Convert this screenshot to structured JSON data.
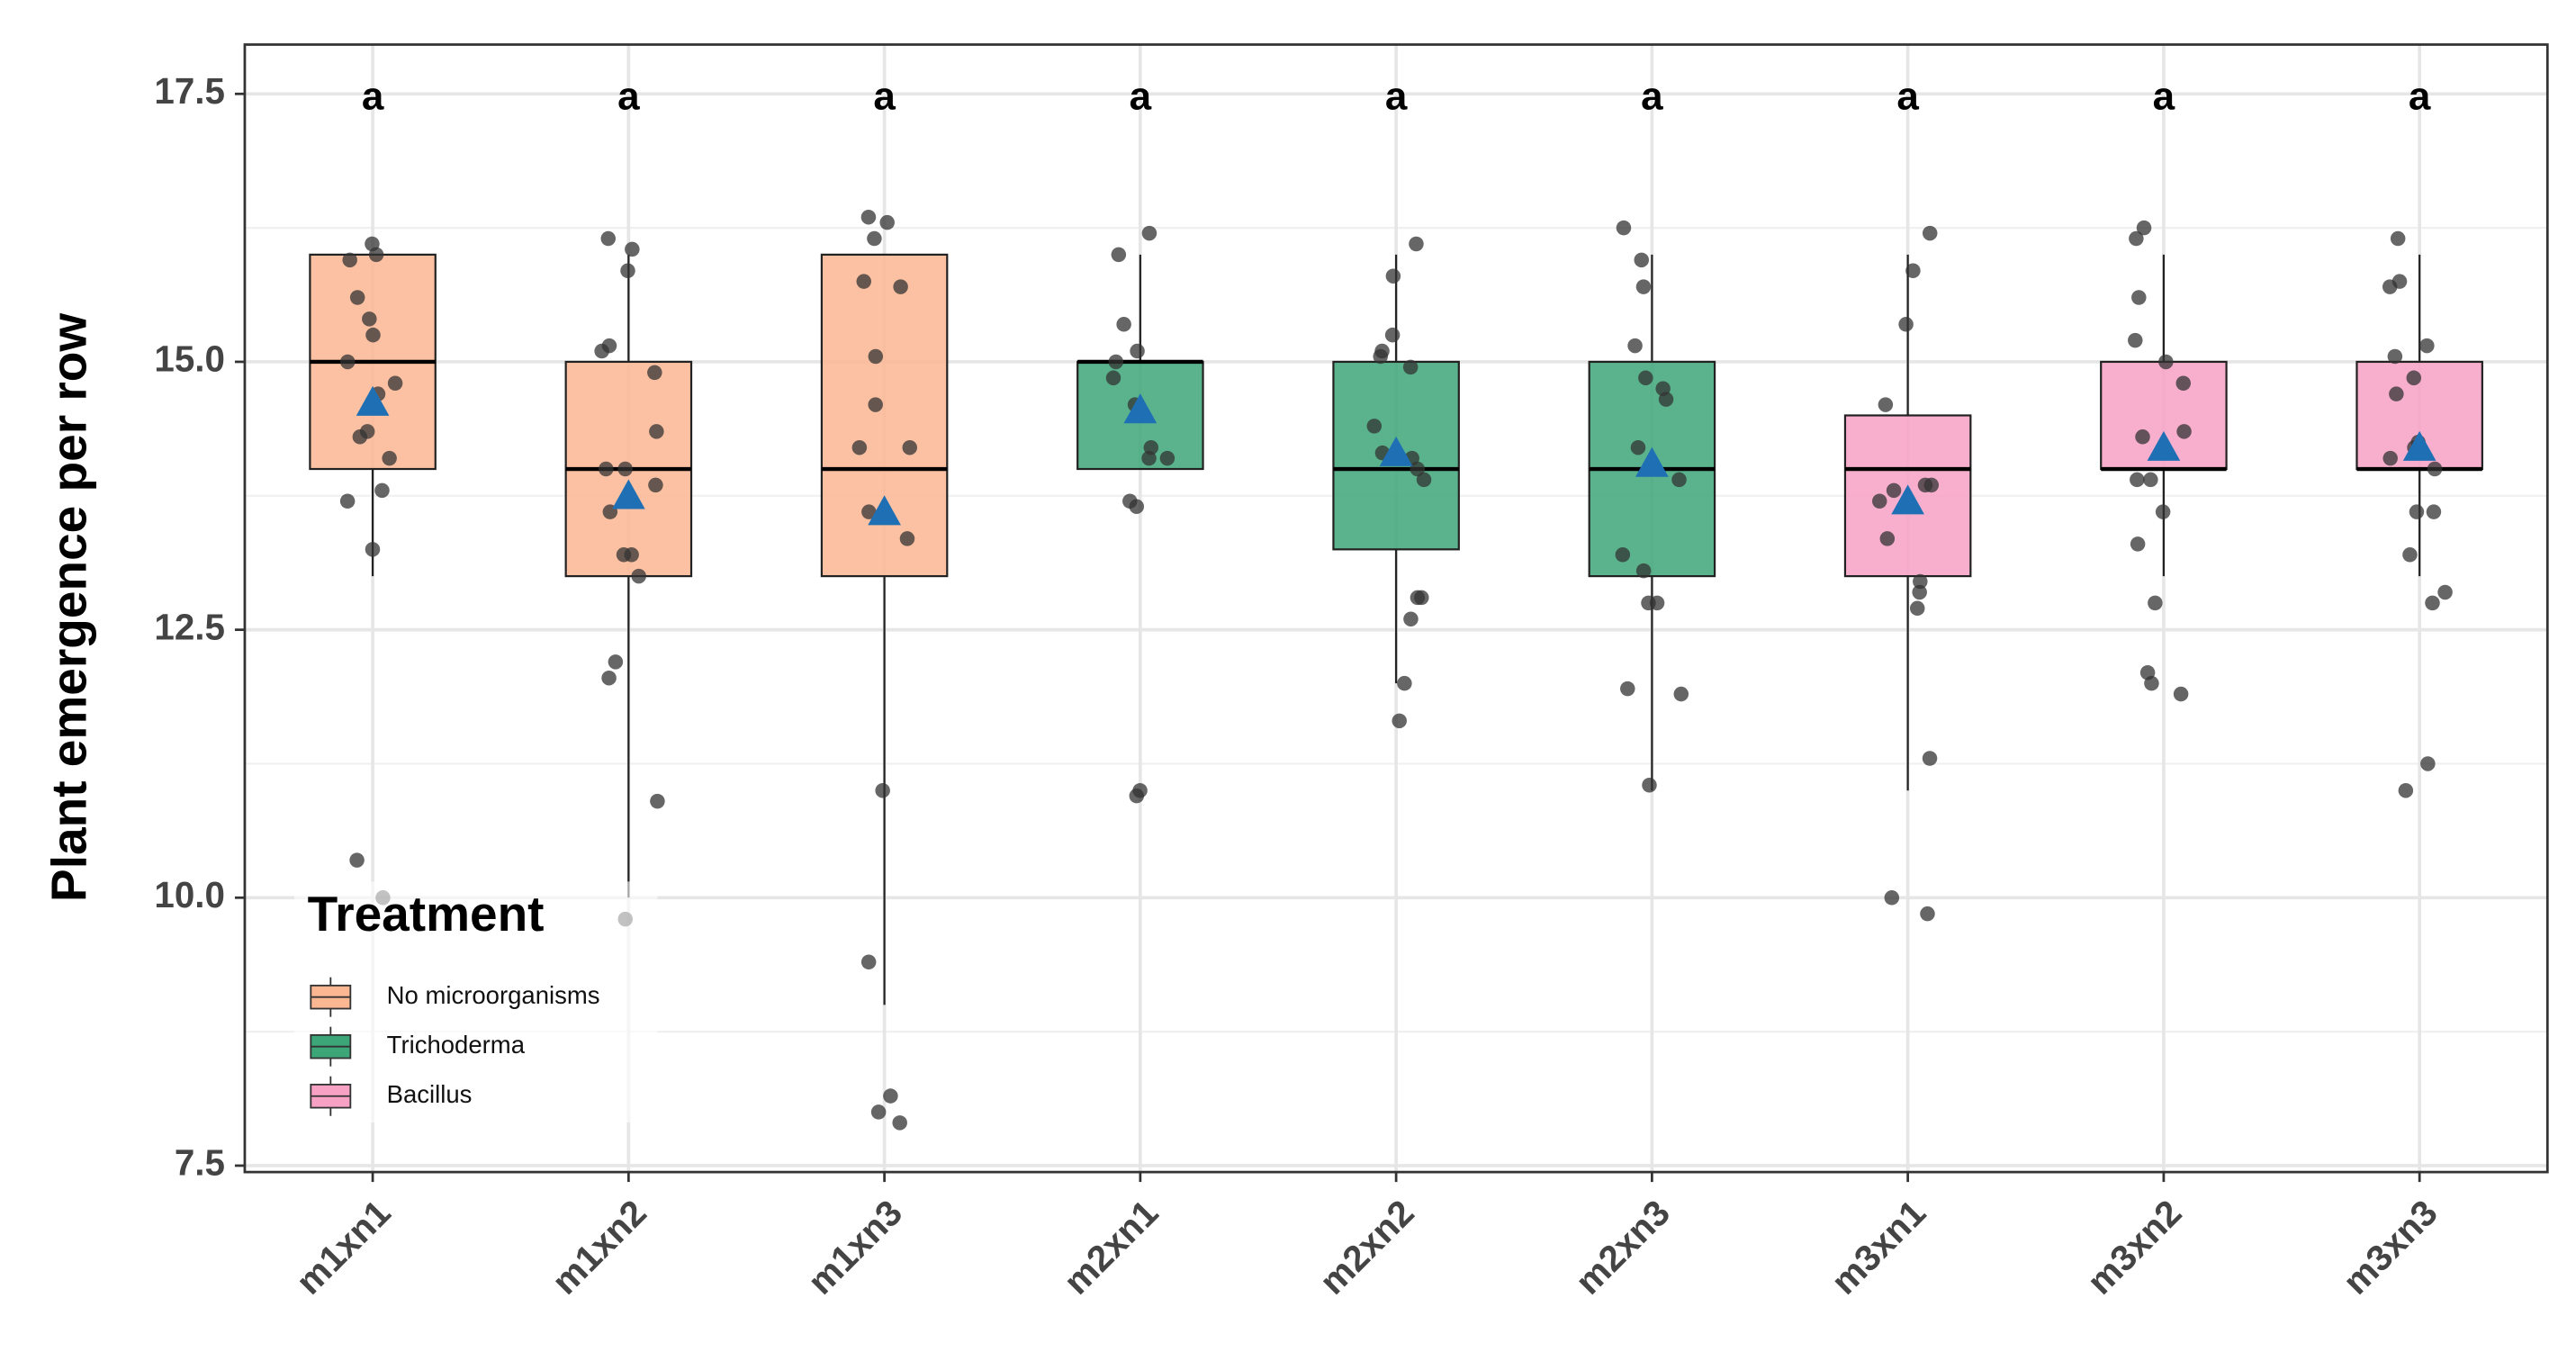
{
  "chart_data": {
    "type": "box",
    "y_label": "Plant emergence per row",
    "legend_title": "Treatment",
    "legend_position": "bottom-left",
    "grid": true,
    "ylim": [
      7.44,
      17.96
    ],
    "yticks": [
      7.5,
      {
        "value": 10,
        "label": "10.0"
      },
      12.5,
      {
        "value": 15,
        "label": "15.0"
      },
      17.5
    ],
    "categories": [
      "m1xn1",
      "m1xn2",
      "m1xn3",
      "m2xn1",
      "m2xn2",
      "m2xn3",
      "m3xn1",
      "m3xn2",
      "m3xn3"
    ],
    "annotations": [
      "a",
      "a",
      "a",
      "a",
      "a",
      "a",
      "a",
      "a",
      "a"
    ],
    "mean_color": "#1f6fb4",
    "point_color": "#333333",
    "series": [
      {
        "name": "No microorganisms",
        "color": "#fbb692",
        "boxes": [
          {
            "low": 13,
            "q1": 14,
            "median": 15,
            "q3": 16,
            "high": 16,
            "mean": 14.62,
            "points": [
              16.1,
              16.0,
              15.95,
              15.6,
              15.4,
              15.25,
              15.0,
              14.8,
              14.7,
              14.35,
              14.3,
              14.1,
              13.8,
              13.7,
              13.25,
              10.35,
              10.0
            ]
          },
          {
            "low": 10,
            "q1": 13,
            "median": 14,
            "q3": 15,
            "high": 16,
            "mean": 13.75,
            "points": [
              16.15,
              16.05,
              15.85,
              15.15,
              15.1,
              14.9,
              14.35,
              14.0,
              14.0,
              13.85,
              13.6,
              13.2,
              13.2,
              13.0,
              12.2,
              12.05,
              10.9,
              9.8
            ]
          },
          {
            "low": 9,
            "q1": 13,
            "median": 14,
            "q3": 16,
            "high": 16,
            "mean": 13.6,
            "points": [
              16.35,
              16.3,
              16.15,
              15.75,
              15.7,
              15.05,
              14.6,
              14.2,
              14.2,
              13.6,
              13.35,
              11.0,
              9.4,
              8.15,
              8.0,
              7.9
            ]
          }
        ]
      },
      {
        "name": "Trichoderma",
        "color": "#3da678",
        "boxes": [
          {
            "low": 14,
            "q1": 14,
            "median": 15,
            "q3": 15,
            "high": 16,
            "mean": 14.55,
            "points": [
              16.2,
              16.0,
              15.35,
              15.1,
              15.0,
              14.85,
              14.6,
              14.2,
              14.1,
              14.1,
              13.7,
              13.65,
              11.0,
              10.95
            ]
          },
          {
            "low": 12,
            "q1": 13.25,
            "median": 14,
            "q3": 15,
            "high": 16,
            "mean": 14.15,
            "points": [
              16.1,
              15.8,
              15.25,
              15.1,
              15.05,
              14.95,
              14.4,
              14.15,
              14.1,
              14.0,
              13.9,
              12.8,
              12.8,
              12.6,
              12.0,
              11.65
            ]
          },
          {
            "low": 11,
            "q1": 13,
            "median": 14,
            "q3": 15,
            "high": 16,
            "mean": 14.05,
            "points": [
              16.25,
              15.95,
              15.7,
              15.15,
              14.85,
              14.75,
              14.65,
              14.2,
              13.9,
              13.2,
              13.05,
              12.75,
              12.75,
              11.95,
              11.9,
              11.05
            ]
          }
        ]
      },
      {
        "name": "Bacillus",
        "color": "#f7a1c4",
        "boxes": [
          {
            "low": 11,
            "q1": 13,
            "median": 14,
            "q3": 14.5,
            "high": 16,
            "mean": 13.7,
            "points": [
              16.2,
              15.85,
              15.35,
              14.6,
              13.85,
              13.85,
              13.8,
              13.7,
              13.35,
              12.95,
              12.85,
              12.7,
              11.3,
              10.0,
              9.85
            ]
          },
          {
            "low": 13,
            "q1": 14,
            "median": 14,
            "q3": 15,
            "high": 16,
            "mean": 14.2,
            "points": [
              16.25,
              16.15,
              15.6,
              15.2,
              15.0,
              14.8,
              14.35,
              14.3,
              14.15,
              13.9,
              13.9,
              13.6,
              13.3,
              12.75,
              12.1,
              12.0,
              11.9
            ]
          },
          {
            "low": 13,
            "q1": 14,
            "median": 14,
            "q3": 15,
            "high": 16,
            "mean": 14.2,
            "points": [
              16.15,
              15.75,
              15.7,
              15.15,
              15.05,
              14.85,
              14.7,
              14.25,
              14.2,
              14.1,
              14.0,
              13.6,
              13.6,
              13.2,
              12.85,
              12.75,
              11.25,
              11.0
            ]
          }
        ]
      }
    ]
  }
}
